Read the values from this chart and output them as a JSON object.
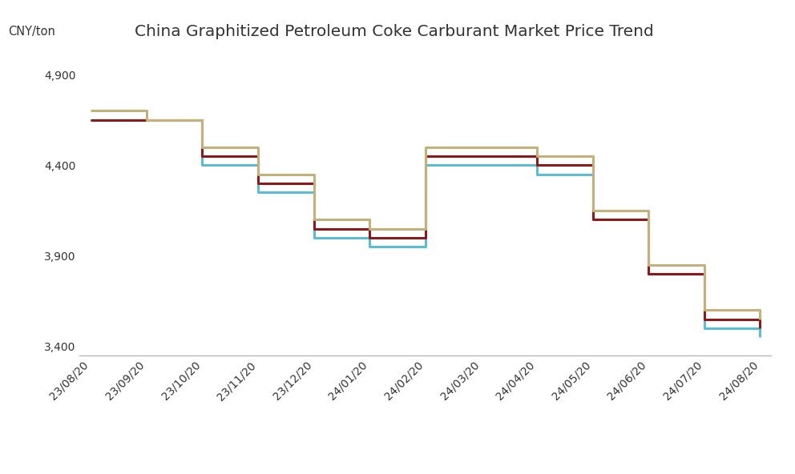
{
  "title": "China Graphitized Petroleum Coke Carburant Market Price Trend",
  "ylabel": "CNY/ton",
  "background_color": "#ffffff",
  "title_fontsize": 14.5,
  "ylabel_fontsize": 10.5,
  "tick_fontsize": 10,
  "legend_fontsize": 11,
  "x_labels": [
    "23/08/20",
    "23/09/20",
    "23/10/20",
    "23/11/20",
    "23/12/20",
    "24/01/20",
    "24/02/20",
    "24/03/20",
    "24/04/20",
    "24/05/20",
    "24/06/20",
    "24/07/20",
    "24/08/20"
  ],
  "x_positions": [
    0,
    1,
    2,
    3,
    4,
    5,
    6,
    7,
    8,
    9,
    10,
    11,
    12
  ],
  "ylim": [
    3350,
    5050
  ],
  "yticks": [
    3400,
    3900,
    4400,
    4900
  ],
  "series": {
    "North China": {
      "color": "#5BBCD4",
      "linewidth": 2.2,
      "values": [
        4650,
        4650,
        4400,
        4250,
        4000,
        3950,
        4400,
        4400,
        4350,
        4100,
        3800,
        3500,
        3450
      ]
    },
    "Central China": {
      "color": "#8B1A1A",
      "linewidth": 2.2,
      "values": [
        4650,
        4650,
        4450,
        4300,
        4050,
        4000,
        4450,
        4450,
        4400,
        4100,
        3800,
        3550,
        3500
      ]
    },
    "East China": {
      "color": "#C4B07A",
      "linewidth": 2.2,
      "values": [
        4700,
        4650,
        4500,
        4350,
        4100,
        4050,
        4500,
        4500,
        4450,
        4150,
        3850,
        3600,
        3550
      ]
    }
  }
}
